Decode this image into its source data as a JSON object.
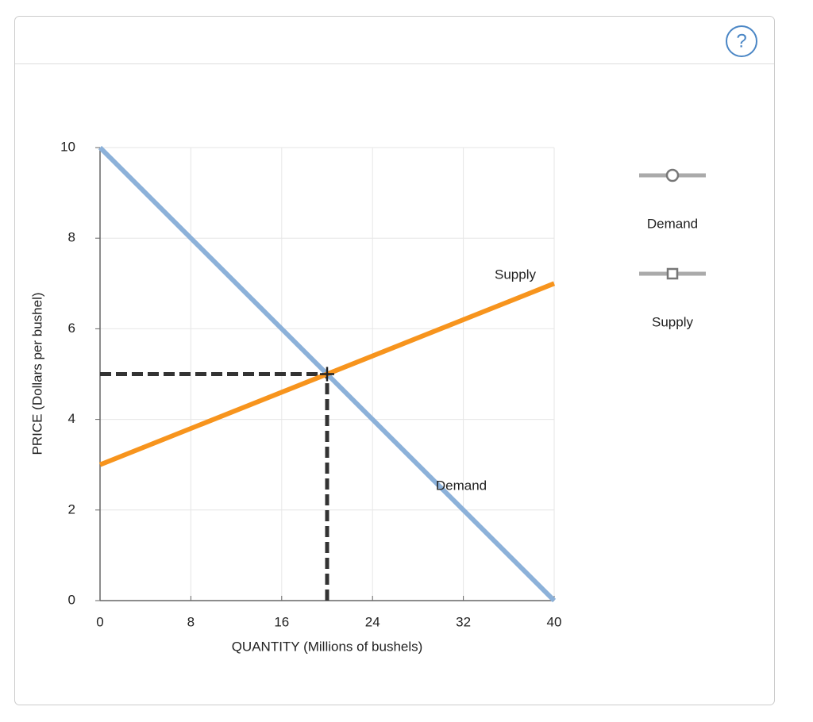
{
  "toolbar": {
    "help": "?"
  },
  "chart_data": {
    "type": "line",
    "x_label": "QUANTITY (Millions of bushels)",
    "y_label": "PRICE (Dollars per bushel)",
    "x": [
      0,
      40
    ],
    "series": [
      {
        "name": "Demand",
        "color": "#8cb1d9",
        "values": [
          10,
          0
        ],
        "marker": "circle"
      },
      {
        "name": "Supply",
        "color": "#f7941d",
        "values": [
          3,
          7
        ],
        "marker": "square"
      }
    ],
    "equilibrium": {
      "x": 20,
      "y": 5
    },
    "xlim": [
      0,
      40
    ],
    "xticks": [
      0,
      8,
      16,
      24,
      32,
      40
    ],
    "ylim": [
      0,
      10
    ],
    "yticks": [
      0,
      2,
      4,
      6,
      8,
      10
    ],
    "grid": true
  }
}
